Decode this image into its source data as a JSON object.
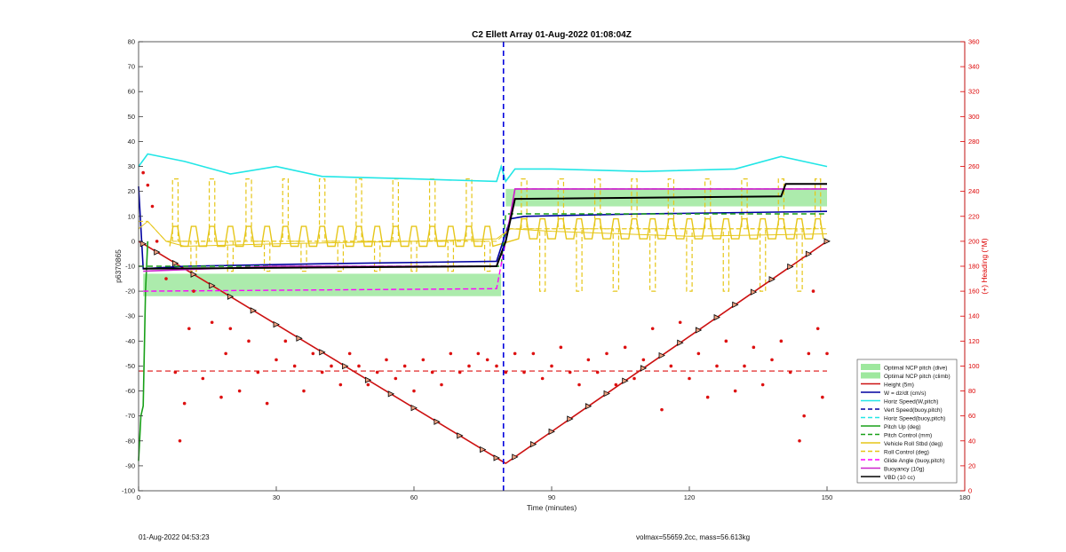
{
  "figure": {
    "footer_left": "01-Aug-2022 04:53:23",
    "footer_right": "volmax=55659.2cc, mass=56.613kg"
  },
  "chart_data": {
    "type": "line",
    "title": "C2 Ellett Array 01-Aug-2022 01:08:04Z",
    "xlabel": "Time (minutes)",
    "ylabel_left": "p6370865",
    "ylabel_right": "(+) Heading (°M)",
    "xlim": [
      0,
      180
    ],
    "ylim_left": [
      -100,
      80
    ],
    "ylim_right": [
      0,
      360
    ],
    "xticks": [
      0,
      30,
      60,
      90,
      120,
      150,
      180
    ],
    "yticks_left": [
      -100,
      -90,
      -80,
      -70,
      -60,
      -50,
      -40,
      -30,
      -20,
      -10,
      0,
      10,
      20,
      30,
      40,
      50,
      60,
      70,
      80
    ],
    "yticks_right": [
      0,
      20,
      40,
      60,
      80,
      100,
      120,
      140,
      160,
      180,
      200,
      220,
      240,
      260,
      280,
      300,
      320,
      340,
      360
    ],
    "grid": false,
    "legend_position": "lower-right",
    "apogee_line_x": 79.5,
    "heading_mean_line": 96,
    "colors": {
      "ncp_band": "#9ee89e",
      "w": "#0000a0",
      "horiz_speed": "#22e6e6",
      "height": "#cc1111",
      "pitch": "#18a018",
      "roll": "#e6c619",
      "glide": "#ff00ff",
      "buoyancy": "#cc22cc",
      "vbd": "#000000",
      "heading": "#dd1111"
    },
    "legend": [
      {
        "label": "Optimal NCP pitch (dive)",
        "style": "patch",
        "color": "#9ee89e"
      },
      {
        "label": "Optimal NCP pitch (climb)",
        "style": "patch",
        "color": "#9ee89e"
      },
      {
        "label": "Height (5m)",
        "style": "solid",
        "color": "#cc1111"
      },
      {
        "label": "W = dz/dt (cm/s)",
        "style": "solid",
        "color": "#0000a0"
      },
      {
        "label": "Horiz Speed(W,pitch)",
        "style": "solid",
        "color": "#22e6e6"
      },
      {
        "label": "Vert Speed(buoy,pitch)",
        "style": "dash",
        "color": "#0000a0"
      },
      {
        "label": "Horiz Speed(buoy,pitch)",
        "style": "dash",
        "color": "#22e6e6"
      },
      {
        "label": "Pitch Up (deg)",
        "style": "solid",
        "color": "#18a018"
      },
      {
        "label": "Pitch Control (mm)",
        "style": "dash",
        "color": "#18a018"
      },
      {
        "label": "Vehicle Roll Stbd (deg)",
        "style": "solid",
        "color": "#e6c619"
      },
      {
        "label": "Roll Control (deg)",
        "style": "dash",
        "color": "#e6c619"
      },
      {
        "label": "Glide Angle (buoy,pitch)",
        "style": "dash",
        "color": "#ff00ff"
      },
      {
        "label": "Buoyancy (10g)",
        "style": "solid",
        "color": "#cc22cc"
      },
      {
        "label": "VBD (10 cc)",
        "style": "solid",
        "color": "#000000"
      }
    ],
    "series": [
      {
        "name": "Height (5m)",
        "x": [
          0,
          1,
          79.5,
          80,
          150
        ],
        "y": [
          0,
          -1,
          -88.5,
          -89,
          0
        ]
      },
      {
        "name": "W = dz/dt (cm/s)",
        "x": [
          0,
          1,
          10,
          40,
          78,
          81,
          84,
          110,
          150
        ],
        "y": [
          22,
          -11,
          -10,
          -9,
          -8,
          9,
          10,
          11,
          12
        ]
      },
      {
        "name": "Horiz Speed(W,pitch)",
        "x": [
          0,
          2,
          10,
          20,
          30,
          40,
          60,
          78,
          79,
          80,
          82,
          90,
          110,
          130,
          140,
          150
        ],
        "y": [
          30,
          35,
          32,
          27,
          30,
          26,
          25,
          24,
          30,
          24,
          29,
          29,
          28,
          29,
          34,
          30
        ]
      },
      {
        "name": "Pitch Up (deg)",
        "x": [
          0,
          0.5,
          1,
          1.5,
          2
        ],
        "y": [
          -88,
          -70,
          -66,
          -20,
          0
        ]
      },
      {
        "name": "Pitch Control (mm)",
        "x": [
          0,
          1,
          79,
          80,
          150
        ],
        "y": [
          -10,
          -10,
          -10,
          11,
          11
        ]
      },
      {
        "name": "Vehicle Roll Stbd (deg)",
        "x": [
          0,
          2,
          6,
          10,
          30,
          60,
          78,
          81,
          90,
          120,
          150
        ],
        "y": [
          5,
          8,
          0,
          -2,
          -1,
          0,
          1,
          5,
          4,
          2,
          3
        ]
      },
      {
        "name": "Roll Control (deg)",
        "x": [
          0,
          2,
          6,
          30,
          60,
          78,
          81,
          120,
          150
        ],
        "y": [
          8,
          8,
          0,
          0,
          0,
          0,
          5,
          5,
          5
        ]
      },
      {
        "name": "Glide Angle (buoy,pitch)",
        "x": [
          1,
          78,
          80,
          82,
          150
        ],
        "y": [
          -20,
          -19,
          0,
          21,
          21
        ]
      },
      {
        "name": "Buoyancy (10g)",
        "x": [
          1,
          30,
          78,
          80,
          82,
          150
        ],
        "y": [
          -12,
          -10,
          -10,
          0,
          21,
          21
        ]
      },
      {
        "name": "VBD (10 cc)",
        "x": [
          1,
          78,
          80,
          82,
          140,
          141,
          150
        ],
        "y": [
          -11,
          -10,
          0,
          17,
          18,
          23,
          23
        ]
      }
    ],
    "ncp_bands": [
      {
        "name": "Optimal NCP pitch (dive)",
        "x": [
          1,
          79
        ],
        "y_low": -22,
        "y_high": -13
      },
      {
        "name": "Optimal NCP pitch (climb)",
        "x": [
          80,
          150
        ],
        "y_low": 14,
        "y_high": 21
      }
    ],
    "heading_points": [
      [
        1,
        255
      ],
      [
        2,
        245
      ],
      [
        3,
        228
      ],
      [
        4,
        200
      ],
      [
        6,
        170
      ],
      [
        8,
        95
      ],
      [
        9,
        40
      ],
      [
        10,
        70
      ],
      [
        11,
        130
      ],
      [
        12,
        160
      ],
      [
        14,
        90
      ],
      [
        16,
        135
      ],
      [
        18,
        75
      ],
      [
        19,
        110
      ],
      [
        20,
        130
      ],
      [
        22,
        80
      ],
      [
        24,
        120
      ],
      [
        26,
        95
      ],
      [
        28,
        70
      ],
      [
        30,
        105
      ],
      [
        32,
        120
      ],
      [
        34,
        100
      ],
      [
        36,
        80
      ],
      [
        38,
        110
      ],
      [
        40,
        95
      ],
      [
        42,
        100
      ],
      [
        44,
        85
      ],
      [
        46,
        110
      ],
      [
        48,
        100
      ],
      [
        50,
        85
      ],
      [
        52,
        95
      ],
      [
        54,
        105
      ],
      [
        56,
        90
      ],
      [
        58,
        100
      ],
      [
        60,
        80
      ],
      [
        62,
        105
      ],
      [
        64,
        95
      ],
      [
        66,
        85
      ],
      [
        68,
        110
      ],
      [
        70,
        95
      ],
      [
        72,
        100
      ],
      [
        74,
        110
      ],
      [
        76,
        105
      ],
      [
        78,
        100
      ],
      [
        80,
        95
      ],
      [
        82,
        110
      ],
      [
        84,
        95
      ],
      [
        86,
        110
      ],
      [
        88,
        90
      ],
      [
        90,
        100
      ],
      [
        92,
        115
      ],
      [
        94,
        95
      ],
      [
        96,
        85
      ],
      [
        98,
        105
      ],
      [
        100,
        95
      ],
      [
        102,
        110
      ],
      [
        104,
        85
      ],
      [
        106,
        115
      ],
      [
        108,
        90
      ],
      [
        110,
        105
      ],
      [
        112,
        130
      ],
      [
        114,
        65
      ],
      [
        116,
        100
      ],
      [
        118,
        135
      ],
      [
        120,
        90
      ],
      [
        122,
        110
      ],
      [
        124,
        75
      ],
      [
        126,
        100
      ],
      [
        128,
        120
      ],
      [
        130,
        80
      ],
      [
        132,
        100
      ],
      [
        134,
        115
      ],
      [
        136,
        85
      ],
      [
        138,
        105
      ],
      [
        140,
        120
      ],
      [
        142,
        95
      ],
      [
        144,
        40
      ],
      [
        145,
        60
      ],
      [
        146,
        110
      ],
      [
        147,
        160
      ],
      [
        148,
        130
      ],
      [
        149,
        75
      ],
      [
        150,
        110
      ]
    ],
    "height_markers_x": [
      1,
      4,
      8,
      12,
      16,
      20,
      25,
      30,
      35,
      40,
      45,
      50,
      55,
      60,
      65,
      70,
      75,
      78,
      82,
      86,
      90,
      94,
      98,
      102,
      106,
      110,
      114,
      118,
      122,
      126,
      130,
      134,
      138,
      142,
      146,
      150
    ],
    "roll_pulses_dive": [
      8,
      12,
      16,
      20,
      24,
      28,
      32,
      36,
      40,
      44,
      48,
      52,
      56,
      60,
      64,
      68,
      72,
      76
    ],
    "roll_pulses_climb": [
      84,
      88,
      92,
      96,
      100,
      104,
      108,
      112,
      116,
      120,
      124,
      128,
      132,
      136,
      140,
      144,
      148
    ]
  }
}
